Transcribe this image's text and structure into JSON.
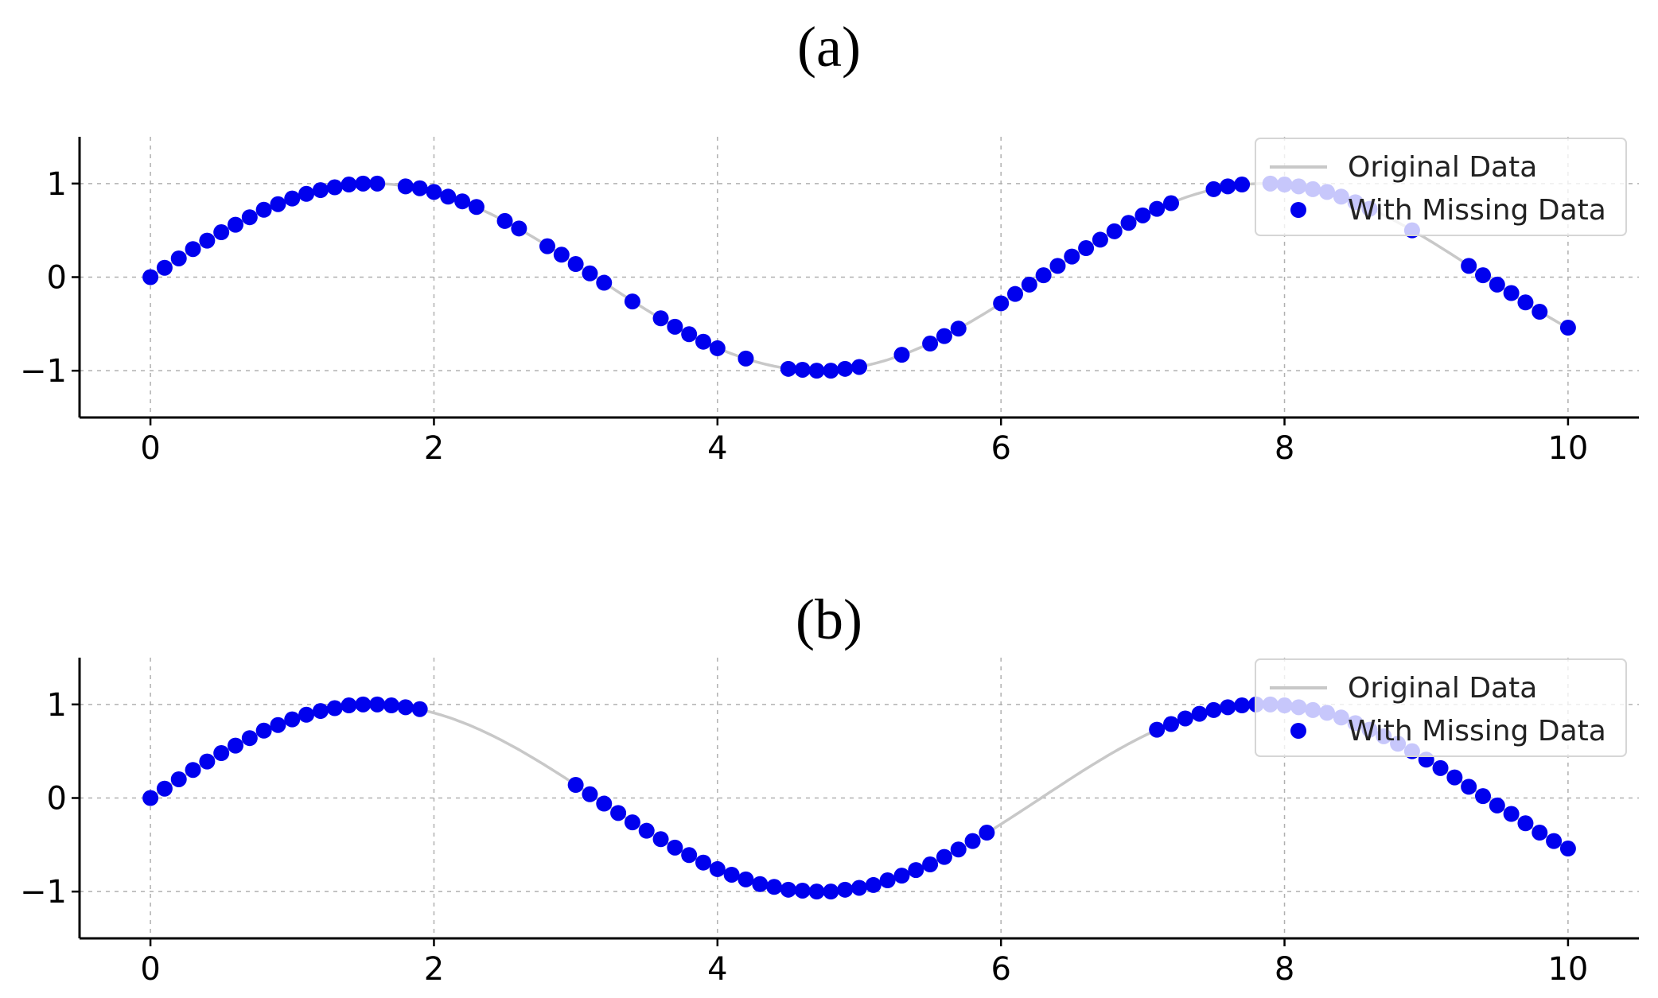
{
  "figure": {
    "panel_a_label": "(a)",
    "panel_b_label": "(b)"
  },
  "colors": {
    "points": "#0000ee",
    "original_line": "#c8c8c8",
    "grid": "#b0b0b0",
    "axis": "#000000"
  },
  "chart_data": [
    {
      "type": "scatter",
      "panel": "(a)",
      "xlim": [
        -0.5,
        10.5
      ],
      "ylim": [
        -1.5,
        1.5
      ],
      "xticks": [
        0,
        2,
        4,
        6,
        8,
        10
      ],
      "yticks": [
        -1,
        0,
        1
      ],
      "xtick_labels": [
        "0",
        "2",
        "4",
        "6",
        "8",
        "10"
      ],
      "ytick_labels": [
        "−1",
        "0",
        "1"
      ],
      "grid": true,
      "legend_position": "top-right",
      "series": [
        {
          "name": "Original Data",
          "kind": "line",
          "function": "sin(x)",
          "x_range": [
            0,
            10
          ]
        },
        {
          "name": "With Missing Data",
          "kind": "scatter",
          "x": [
            0.0,
            0.1,
            0.2,
            0.3,
            0.4,
            0.5,
            0.6,
            0.7,
            0.8,
            0.9,
            1.0,
            1.1,
            1.2,
            1.3,
            1.4,
            1.5,
            1.6,
            1.8,
            1.9,
            2.0,
            2.1,
            2.2,
            2.3,
            2.5,
            2.6,
            2.8,
            2.9,
            3.0,
            3.1,
            3.2,
            3.4,
            3.6,
            3.7,
            3.8,
            3.9,
            4.0,
            4.2,
            4.5,
            4.6,
            4.7,
            4.8,
            4.9,
            5.0,
            5.3,
            5.5,
            5.6,
            5.7,
            6.0,
            6.1,
            6.2,
            6.3,
            6.4,
            6.5,
            6.6,
            6.7,
            6.8,
            6.9,
            7.0,
            7.1,
            7.2,
            7.5,
            7.6,
            7.7,
            7.9,
            8.0,
            8.1,
            8.2,
            8.3,
            8.4,
            8.5,
            8.6,
            8.9,
            9.3,
            9.4,
            9.5,
            9.6,
            9.7,
            9.8,
            10.0
          ],
          "y": [
            0.0,
            0.1,
            0.2,
            0.3,
            0.39,
            0.48,
            0.56,
            0.64,
            0.72,
            0.78,
            0.84,
            0.89,
            0.93,
            0.96,
            0.99,
            1.0,
            1.0,
            0.97,
            0.95,
            0.91,
            0.86,
            0.81,
            0.75,
            0.6,
            0.52,
            0.33,
            0.24,
            0.14,
            0.04,
            -0.06,
            -0.26,
            -0.44,
            -0.53,
            -0.61,
            -0.69,
            -0.76,
            -0.87,
            -0.98,
            -0.99,
            -1.0,
            -1.0,
            -0.98,
            -0.96,
            -0.83,
            -0.71,
            -0.63,
            -0.55,
            -0.28,
            -0.18,
            -0.08,
            0.02,
            0.12,
            0.22,
            0.31,
            0.4,
            0.49,
            0.58,
            0.66,
            0.73,
            0.79,
            0.94,
            0.97,
            0.99,
            1.0,
            0.99,
            0.97,
            0.94,
            0.91,
            0.86,
            0.8,
            0.73,
            0.5,
            0.12,
            0.02,
            -0.08,
            -0.17,
            -0.27,
            -0.37,
            -0.54
          ]
        }
      ]
    },
    {
      "type": "scatter",
      "panel": "(b)",
      "xlim": [
        -0.5,
        10.5
      ],
      "ylim": [
        -1.5,
        1.5
      ],
      "xticks": [
        0,
        2,
        4,
        6,
        8,
        10
      ],
      "yticks": [
        -1,
        0,
        1
      ],
      "xtick_labels": [
        "0",
        "2",
        "4",
        "6",
        "8",
        "10"
      ],
      "ytick_labels": [
        "−1",
        "0",
        "1"
      ],
      "grid": true,
      "legend_position": "top-right",
      "series": [
        {
          "name": "Original Data",
          "kind": "line",
          "function": "sin(x)",
          "x_range": [
            0,
            10
          ]
        },
        {
          "name": "With Missing Data",
          "kind": "scatter",
          "x": [
            0.0,
            0.1,
            0.2,
            0.3,
            0.4,
            0.5,
            0.6,
            0.7,
            0.8,
            0.9,
            1.0,
            1.1,
            1.2,
            1.3,
            1.4,
            1.5,
            1.6,
            1.7,
            1.8,
            1.9,
            3.0,
            3.1,
            3.2,
            3.3,
            3.4,
            3.5,
            3.6,
            3.7,
            3.8,
            3.9,
            4.0,
            4.1,
            4.2,
            4.3,
            4.4,
            4.5,
            4.6,
            4.7,
            4.8,
            4.9,
            5.0,
            5.1,
            5.2,
            5.3,
            5.4,
            5.5,
            5.6,
            5.7,
            5.8,
            5.9,
            7.1,
            7.2,
            7.3,
            7.4,
            7.5,
            7.6,
            7.7,
            7.8,
            7.9,
            8.0,
            8.1,
            8.2,
            8.3,
            8.4,
            8.5,
            8.6,
            8.7,
            8.8,
            8.9,
            9.0,
            9.1,
            9.2,
            9.3,
            9.4,
            9.5,
            9.6,
            9.7,
            9.8,
            9.9,
            10.0
          ],
          "y": [
            0.0,
            0.1,
            0.2,
            0.3,
            0.39,
            0.48,
            0.56,
            0.64,
            0.72,
            0.78,
            0.84,
            0.89,
            0.93,
            0.96,
            0.99,
            1.0,
            1.0,
            0.99,
            0.97,
            0.95,
            0.14,
            0.04,
            -0.06,
            -0.16,
            -0.26,
            -0.35,
            -0.44,
            -0.53,
            -0.61,
            -0.69,
            -0.76,
            -0.82,
            -0.87,
            -0.92,
            -0.95,
            -0.98,
            -0.99,
            -1.0,
            -1.0,
            -0.98,
            -0.96,
            -0.93,
            -0.88,
            -0.83,
            -0.77,
            -0.71,
            -0.63,
            -0.55,
            -0.46,
            -0.37,
            0.73,
            0.79,
            0.85,
            0.9,
            0.94,
            0.97,
            0.99,
            1.0,
            1.0,
            0.99,
            0.97,
            0.94,
            0.91,
            0.86,
            0.8,
            0.73,
            0.66,
            0.58,
            0.5,
            0.41,
            0.32,
            0.22,
            0.12,
            0.02,
            -0.08,
            -0.17,
            -0.27,
            -0.37,
            -0.46,
            -0.54
          ]
        }
      ]
    }
  ]
}
